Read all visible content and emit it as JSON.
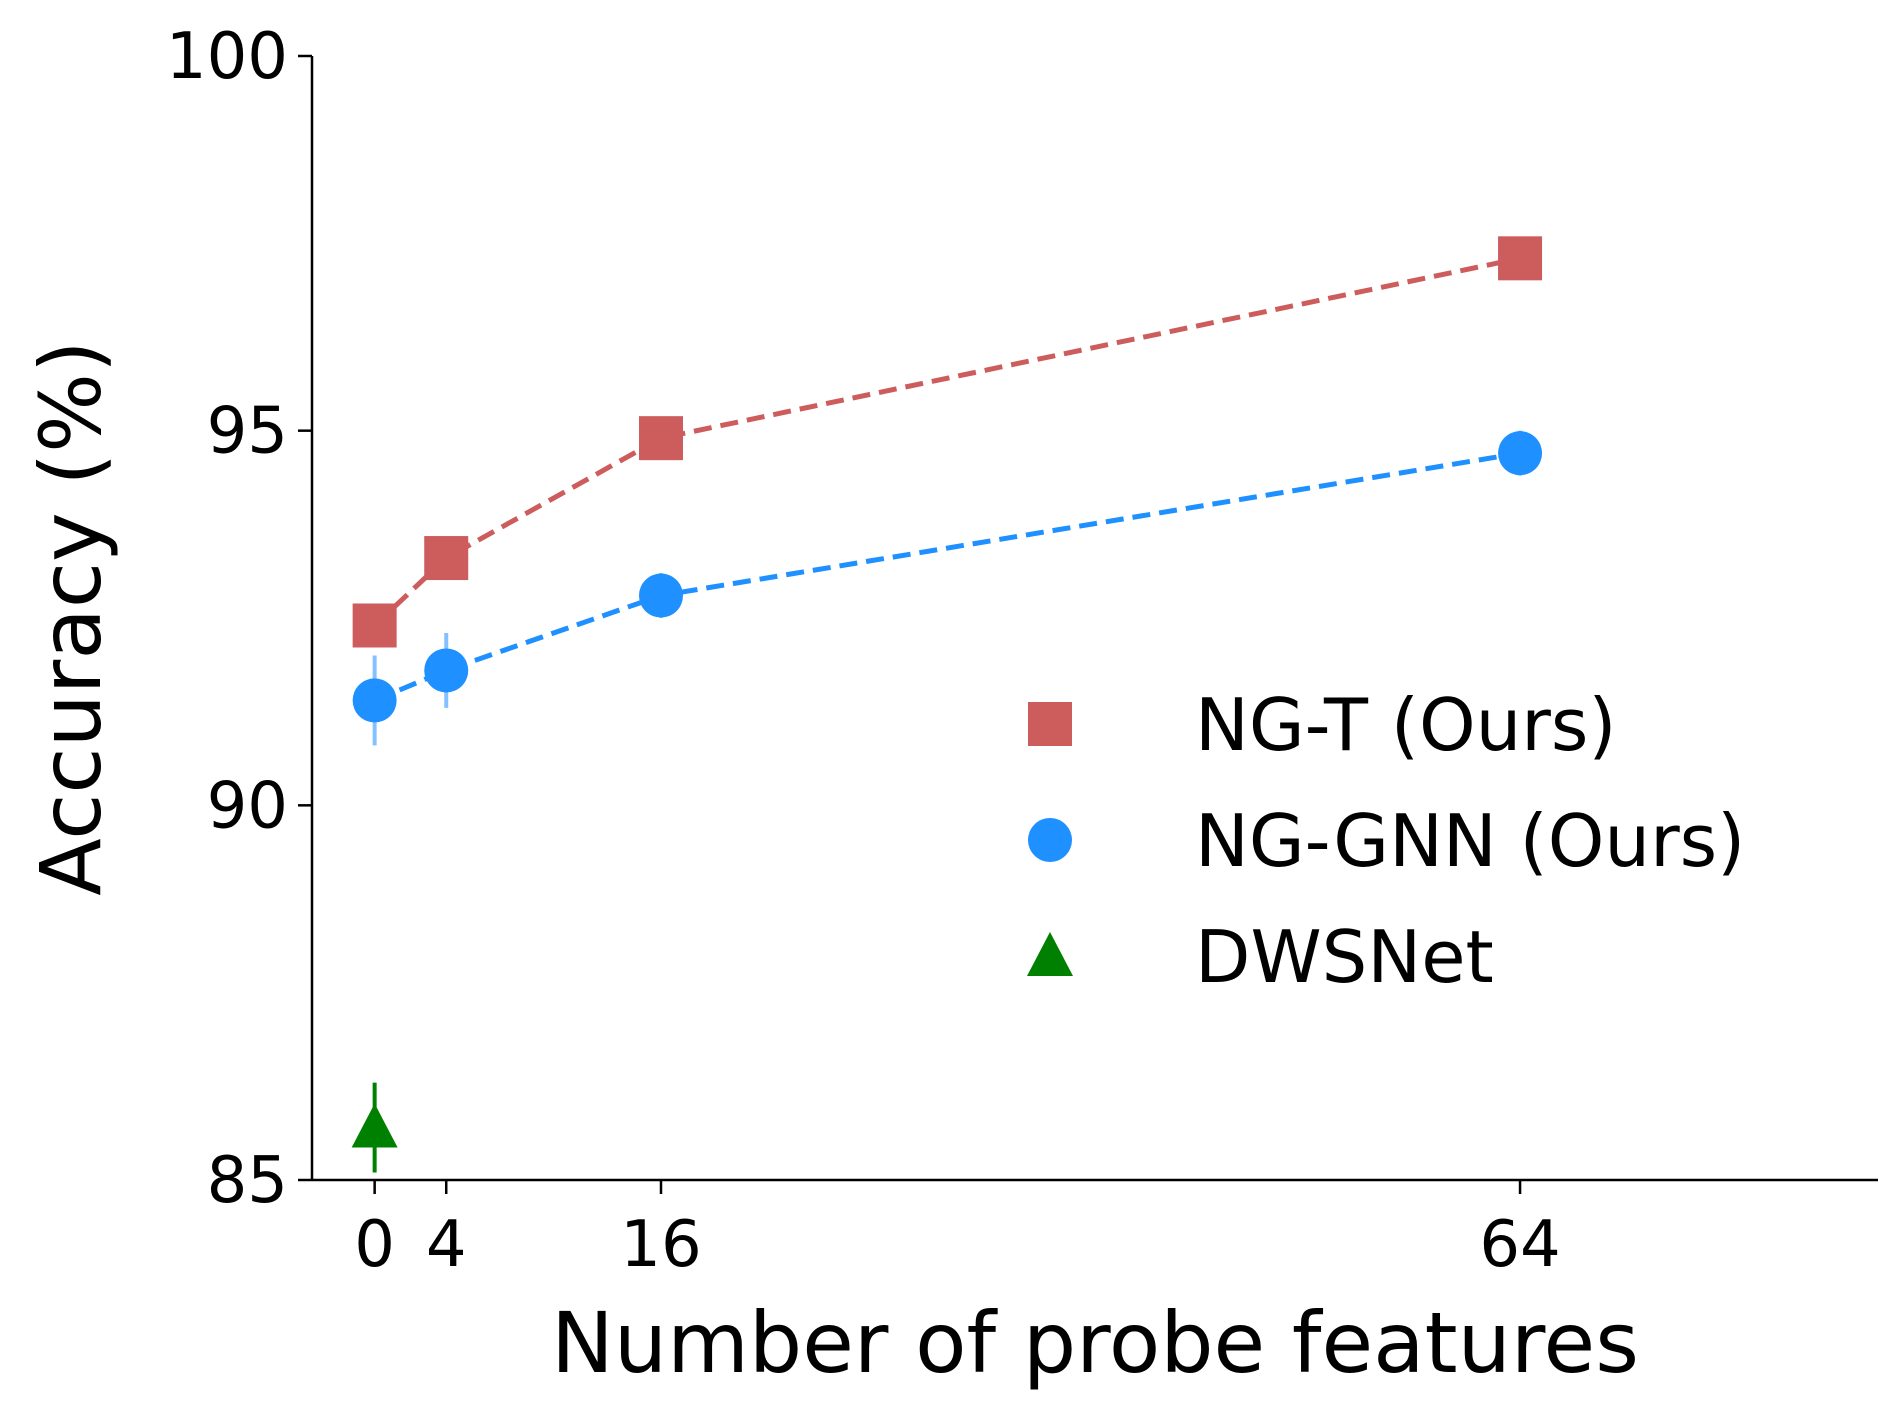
{
  "chart_data": {
    "type": "line",
    "title": "",
    "xlabel": "Number of probe features",
    "ylabel": "Accuracy (%)",
    "xlim": [
      -3.5,
      84
    ],
    "ylim": [
      85,
      100
    ],
    "xticks": [
      0,
      4,
      16,
      64
    ],
    "xtick_labels": [
      "0",
      "4",
      "16",
      "64"
    ],
    "yticks": [
      85,
      90,
      95,
      100
    ],
    "ytick_labels": [
      "85",
      "90",
      "95",
      "100"
    ],
    "legend_position": "center-right",
    "series": [
      {
        "name": "NG-T (Ours)",
        "marker": "square",
        "color": "#cd5c5c",
        "linestyle": "dashed",
        "x": [
          0,
          4,
          16,
          64
        ],
        "values": [
          92.4,
          93.3,
          94.9,
          97.3
        ],
        "errors": [
          0.2,
          0.1,
          0.2,
          0.1
        ]
      },
      {
        "name": "NG-GNN (Ours)",
        "marker": "circle",
        "color": "#1e90ff",
        "linestyle": "dashed",
        "x": [
          0,
          4,
          16,
          64
        ],
        "values": [
          91.4,
          91.8,
          92.8,
          94.7
        ],
        "errors": [
          0.6,
          0.5,
          0.3,
          0.3
        ]
      },
      {
        "name": "DWSNet",
        "marker": "triangle",
        "color": "#008000",
        "linestyle": "none",
        "x": [
          0
        ],
        "values": [
          85.7
        ],
        "errors": [
          0.6
        ]
      }
    ]
  }
}
